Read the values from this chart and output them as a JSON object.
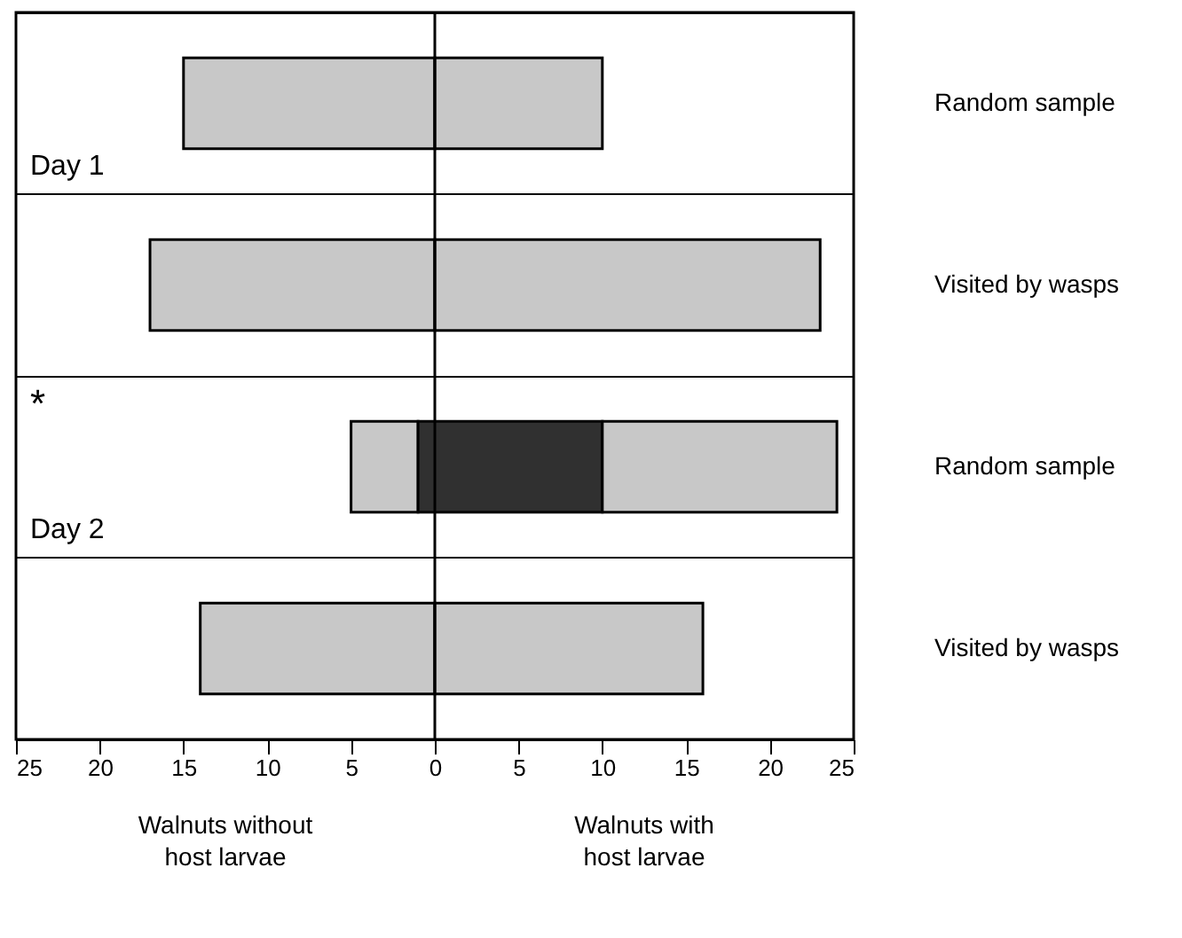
{
  "chart_data": {
    "type": "bar",
    "orientation": "horizontal",
    "categories": [
      "Random sample",
      "Visited by wasps",
      "Random sample",
      "Visited by wasps"
    ],
    "series": [
      {
        "color": "#c8c8c8",
        "base": [
          0,
          0,
          -1,
          0
        ],
        "values": [
          -15,
          -17,
          -4,
          -14
        ]
      },
      {
        "color": "#303030",
        "base": [
          null,
          null,
          -1,
          null
        ],
        "values": [
          null,
          null,
          11,
          null
        ]
      },
      {
        "color": "#c8c8c8",
        "base": [
          0,
          0,
          10,
          0
        ],
        "values": [
          10,
          23,
          14,
          16
        ]
      }
    ],
    "xlim": [
      -25,
      25
    ],
    "xticks": [
      {
        "value": -25,
        "label": "25"
      },
      {
        "value": -20,
        "label": "20"
      },
      {
        "value": -15,
        "label": "15"
      },
      {
        "value": -10,
        "label": "10"
      },
      {
        "value": -5,
        "label": "5"
      },
      0,
      5,
      10,
      15,
      20,
      25
    ],
    "grid": "y",
    "ref_lines": [
      {
        "axis": "x",
        "value": 0,
        "color": "#000000"
      }
    ],
    "annotations": [
      "Day 1",
      "Day 2",
      "*",
      "Walnuts without\nhost larvae",
      "Walnuts with\nhost larvae"
    ]
  }
}
